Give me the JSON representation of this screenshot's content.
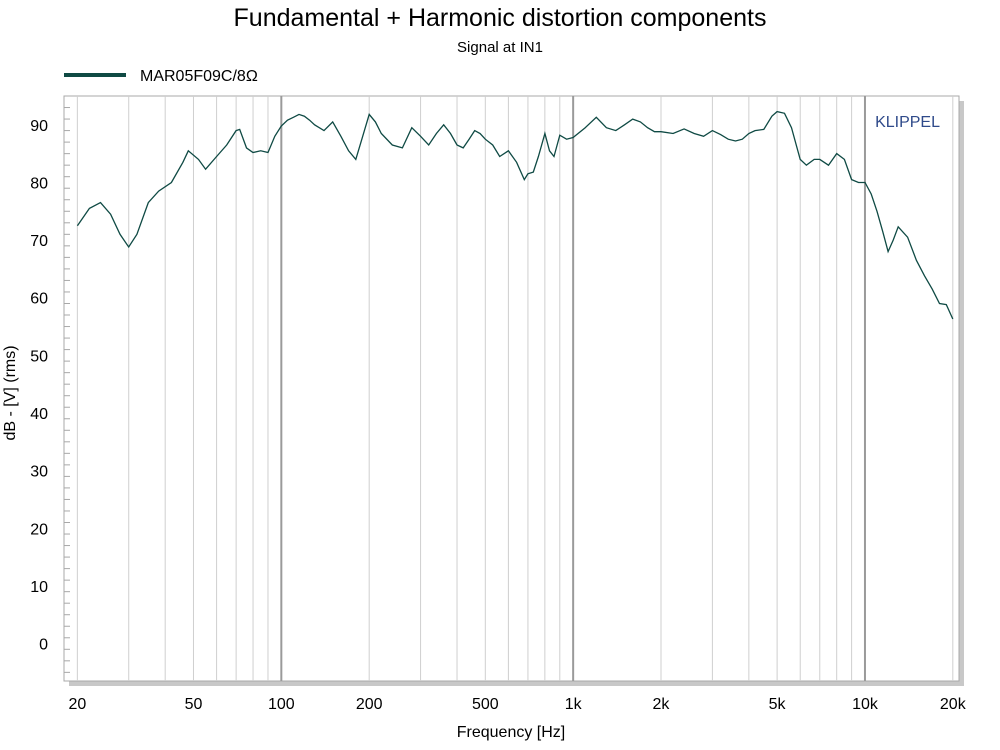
{
  "chart_data": {
    "type": "line",
    "title": "Fundamental + Harmonic distortion components",
    "subtitle": "Signal at IN1",
    "xlabel": "Frequency [Hz]",
    "ylabel": "dB - [V]  (rms)",
    "x_scale": "log",
    "xlim": [
      18,
      21000
    ],
    "ylim": [
      -6.5,
      95
    ],
    "grid": true,
    "legend_position": "top-left",
    "watermark": "KLIPPEL",
    "x_ticks": [
      {
        "value": 20,
        "label": "20"
      },
      {
        "value": 50,
        "label": "50"
      },
      {
        "value": 100,
        "label": "100"
      },
      {
        "value": 200,
        "label": "200"
      },
      {
        "value": 500,
        "label": "500"
      },
      {
        "value": 1000,
        "label": "1k"
      },
      {
        "value": 2000,
        "label": "2k"
      },
      {
        "value": 5000,
        "label": "5k"
      },
      {
        "value": 10000,
        "label": "10k"
      },
      {
        "value": 20000,
        "label": "20k"
      }
    ],
    "y_ticks": [
      0,
      10,
      20,
      30,
      40,
      50,
      60,
      70,
      80,
      90
    ],
    "series": [
      {
        "name": "MAR05F09C/8Ω",
        "color": "#0f4a44",
        "x": [
          20,
          22,
          24,
          26,
          28,
          30,
          32,
          35,
          38,
          42,
          46,
          48,
          52,
          55,
          60,
          65,
          70,
          72,
          76,
          80,
          85,
          90,
          95,
          100,
          105,
          110,
          115,
          120,
          125,
          130,
          140,
          150,
          160,
          170,
          180,
          190,
          200,
          210,
          220,
          240,
          260,
          280,
          300,
          320,
          340,
          360,
          380,
          400,
          420,
          440,
          460,
          480,
          500,
          530,
          560,
          600,
          640,
          680,
          700,
          730,
          760,
          800,
          830,
          860,
          900,
          950,
          1000,
          1100,
          1200,
          1300,
          1400,
          1500,
          1600,
          1700,
          1800,
          1900,
          2000,
          2200,
          2400,
          2600,
          2800,
          3000,
          3200,
          3400,
          3600,
          3800,
          4000,
          4200,
          4500,
          4800,
          5000,
          5300,
          5600,
          6000,
          6300,
          6700,
          7000,
          7500,
          8000,
          8500,
          9000,
          9500,
          10000,
          10500,
          11000,
          11500,
          12000,
          12500,
          13000,
          14000,
          15000,
          16000,
          17000,
          18000,
          19000,
          20000
        ],
        "values": [
          72.5,
          75.5,
          76.5,
          74.5,
          71,
          68.8,
          71,
          76.5,
          78.5,
          80,
          83.5,
          85.5,
          84,
          82.3,
          84.5,
          86.5,
          89,
          89.2,
          86,
          85.2,
          85.5,
          85.2,
          88,
          89.8,
          90.8,
          91.3,
          91.8,
          91.5,
          90.8,
          90,
          89,
          90.5,
          88,
          85.5,
          84,
          88,
          91.8,
          90.5,
          88.5,
          86.5,
          86,
          89.5,
          88,
          86.5,
          88.5,
          90,
          88.5,
          86.5,
          86,
          87.5,
          89,
          88.5,
          87.5,
          86.5,
          84.5,
          85.5,
          83.5,
          80.5,
          81.5,
          81.8,
          84.5,
          88.5,
          85.5,
          84.5,
          88.2,
          87.5,
          87.8,
          89.5,
          91.3,
          89.5,
          89,
          90,
          91,
          90.5,
          89.5,
          88.8,
          88.8,
          88.5,
          89.3,
          88.5,
          88,
          89,
          88.3,
          87.5,
          87.2,
          87.5,
          88.5,
          89,
          89.2,
          91.5,
          92.3,
          92,
          89.5,
          84,
          83,
          84,
          84,
          83,
          85,
          84,
          80.5,
          80,
          80,
          78,
          75,
          71.5,
          68,
          70,
          72.3,
          70.5,
          66.5,
          63.8,
          61.5,
          59,
          58.8,
          56.3
        ]
      }
    ]
  }
}
